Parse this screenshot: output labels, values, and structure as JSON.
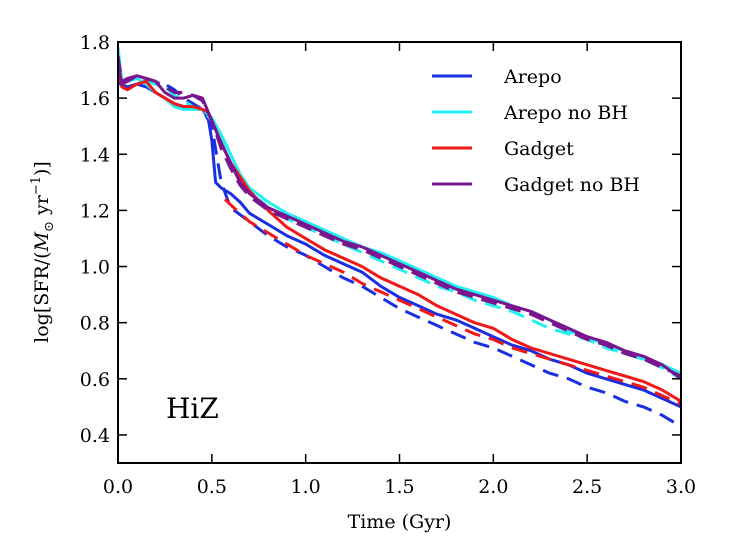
{
  "chart_data": {
    "type": "line",
    "title": "",
    "xlabel": "Time (Gyr)",
    "ylabel": "log[SFR/(M⊙ yr⁻¹)]",
    "ylabel_parts": {
      "prefix": "log[SFR/(",
      "msym": "M",
      "msub": "⊙",
      "unit": " yr",
      "exp": "−1",
      "suffix": ")]"
    },
    "xlim": [
      0.0,
      3.0
    ],
    "ylim": [
      0.3,
      1.8
    ],
    "xticks": [
      0.0,
      0.5,
      1.0,
      1.5,
      2.0,
      2.5,
      3.0
    ],
    "xtick_labels": [
      "0.0",
      "0.5",
      "1.0",
      "1.5",
      "2.0",
      "2.5",
      "3.0"
    ],
    "yticks": [
      0.4,
      0.6,
      0.8,
      1.0,
      1.2,
      1.4,
      1.6,
      1.8
    ],
    "ytick_labels": [
      "0.4",
      "0.6",
      "0.8",
      "1.0",
      "1.2",
      "1.4",
      "1.6",
      "1.8"
    ],
    "panel_label": "HiZ",
    "legend_position": "top-right",
    "legend": [
      {
        "name": "Arepo",
        "color": "#1a2fe0"
      },
      {
        "name": "Arepo no BH",
        "color": "#22f0f0"
      },
      {
        "name": "Gadget",
        "color": "#f01818"
      },
      {
        "name": "Gadget no BH",
        "color": "#7a1590"
      }
    ],
    "series": [
      {
        "name": "Arepo",
        "style": "solid",
        "color": "#1a2fe0",
        "x": [
          0.0,
          0.01,
          0.05,
          0.1,
          0.15,
          0.2,
          0.25,
          0.3,
          0.35,
          0.4,
          0.45,
          0.48,
          0.5,
          0.52,
          0.55,
          0.6,
          0.65,
          0.7,
          0.8,
          0.9,
          1.0,
          1.1,
          1.2,
          1.3,
          1.4,
          1.5,
          1.6,
          1.7,
          1.8,
          1.9,
          2.0,
          2.1,
          2.2,
          2.3,
          2.4,
          2.5,
          2.6,
          2.7,
          2.8,
          2.9,
          3.0
        ],
        "y": [
          1.78,
          1.65,
          1.64,
          1.65,
          1.64,
          1.62,
          1.6,
          1.58,
          1.57,
          1.57,
          1.56,
          1.53,
          1.45,
          1.3,
          1.28,
          1.26,
          1.23,
          1.19,
          1.15,
          1.11,
          1.08,
          1.04,
          1.01,
          0.98,
          0.93,
          0.89,
          0.86,
          0.83,
          0.81,
          0.78,
          0.75,
          0.72,
          0.7,
          0.67,
          0.65,
          0.62,
          0.6,
          0.58,
          0.56,
          0.53,
          0.5
        ]
      },
      {
        "name": "Arepo (dashed)",
        "style": "dashed",
        "color": "#1a2fe0",
        "x": [
          0.0,
          0.02,
          0.05,
          0.1,
          0.15,
          0.2,
          0.25,
          0.3,
          0.35,
          0.4,
          0.45,
          0.5,
          0.55,
          0.6,
          0.7,
          0.8,
          0.9,
          1.0,
          1.1,
          1.2,
          1.3,
          1.4,
          1.5,
          1.6,
          1.7,
          1.8,
          1.9,
          2.0,
          2.1,
          2.2,
          2.3,
          2.4,
          2.5,
          2.6,
          2.7,
          2.8,
          2.9,
          3.0
        ],
        "y": [
          1.76,
          1.66,
          1.66,
          1.67,
          1.66,
          1.65,
          1.65,
          1.63,
          1.6,
          1.58,
          1.56,
          1.5,
          1.3,
          1.21,
          1.16,
          1.11,
          1.07,
          1.04,
          1.0,
          0.96,
          0.93,
          0.89,
          0.85,
          0.82,
          0.79,
          0.76,
          0.73,
          0.71,
          0.68,
          0.65,
          0.62,
          0.6,
          0.57,
          0.55,
          0.52,
          0.5,
          0.47,
          0.43
        ]
      },
      {
        "name": "Arepo no BH",
        "style": "solid",
        "color": "#22f0f0",
        "x": [
          0.0,
          0.02,
          0.05,
          0.1,
          0.15,
          0.2,
          0.25,
          0.3,
          0.35,
          0.4,
          0.45,
          0.5,
          0.55,
          0.6,
          0.65,
          0.7,
          0.8,
          0.9,
          1.0,
          1.1,
          1.2,
          1.3,
          1.4,
          1.5,
          1.6,
          1.7,
          1.8,
          1.9,
          2.0,
          2.1,
          2.2,
          2.3,
          2.4,
          2.5,
          2.6,
          2.7,
          2.8,
          2.9,
          3.0
        ],
        "y": [
          1.78,
          1.66,
          1.66,
          1.67,
          1.65,
          1.62,
          1.6,
          1.57,
          1.56,
          1.56,
          1.56,
          1.53,
          1.47,
          1.4,
          1.33,
          1.28,
          1.23,
          1.19,
          1.16,
          1.13,
          1.1,
          1.07,
          1.05,
          1.02,
          0.99,
          0.96,
          0.93,
          0.91,
          0.89,
          0.86,
          0.84,
          0.81,
          0.77,
          0.75,
          0.72,
          0.7,
          0.67,
          0.65,
          0.62
        ]
      },
      {
        "name": "Arepo no BH (dashed)",
        "style": "dashed",
        "color": "#22f0f0",
        "x": [
          0.0,
          0.02,
          0.05,
          0.1,
          0.15,
          0.2,
          0.25,
          0.3,
          0.35,
          0.4,
          0.45,
          0.5,
          0.55,
          0.6,
          0.7,
          0.8,
          0.9,
          1.0,
          1.1,
          1.2,
          1.3,
          1.4,
          1.5,
          1.6,
          1.7,
          1.8,
          1.9,
          2.0,
          2.1,
          2.2,
          2.3,
          2.4,
          2.5,
          2.6,
          2.7,
          2.8,
          2.9,
          3.0
        ],
        "y": [
          1.76,
          1.66,
          1.66,
          1.67,
          1.66,
          1.65,
          1.64,
          1.61,
          1.59,
          1.57,
          1.56,
          1.52,
          1.45,
          1.36,
          1.27,
          1.21,
          1.17,
          1.14,
          1.11,
          1.08,
          1.05,
          1.02,
          0.99,
          0.96,
          0.93,
          0.91,
          0.88,
          0.86,
          0.84,
          0.81,
          0.78,
          0.76,
          0.74,
          0.71,
          0.69,
          0.67,
          0.64,
          0.6
        ]
      },
      {
        "name": "Gadget",
        "style": "solid",
        "color": "#f01818",
        "x": [
          0.0,
          0.02,
          0.05,
          0.1,
          0.15,
          0.2,
          0.25,
          0.3,
          0.35,
          0.4,
          0.45,
          0.48,
          0.5,
          0.55,
          0.6,
          0.65,
          0.7,
          0.8,
          0.9,
          1.0,
          1.1,
          1.2,
          1.3,
          1.4,
          1.5,
          1.6,
          1.7,
          1.8,
          1.9,
          2.0,
          2.1,
          2.2,
          2.3,
          2.4,
          2.5,
          2.6,
          2.7,
          2.8,
          2.9,
          3.0
        ],
        "y": [
          1.72,
          1.64,
          1.63,
          1.65,
          1.66,
          1.62,
          1.6,
          1.58,
          1.57,
          1.57,
          1.56,
          1.55,
          1.52,
          1.44,
          1.37,
          1.32,
          1.27,
          1.2,
          1.14,
          1.1,
          1.06,
          1.03,
          1.0,
          0.96,
          0.93,
          0.9,
          0.86,
          0.83,
          0.8,
          0.78,
          0.74,
          0.71,
          0.69,
          0.67,
          0.65,
          0.63,
          0.61,
          0.59,
          0.56,
          0.52
        ]
      },
      {
        "name": "Gadget (dashed)",
        "style": "dashed",
        "color": "#f01818",
        "x": [
          0.57,
          0.6,
          0.65,
          0.7,
          0.8,
          0.9,
          1.0,
          1.1,
          1.2,
          1.3,
          1.4,
          1.5,
          1.6,
          1.7,
          1.8,
          1.9,
          2.0,
          2.1,
          2.2,
          2.3,
          2.4,
          2.5,
          2.6,
          2.7,
          2.8,
          2.9,
          3.0
        ],
        "y": [
          1.24,
          1.22,
          1.19,
          1.16,
          1.12,
          1.08,
          1.04,
          1.01,
          0.98,
          0.94,
          0.91,
          0.88,
          0.85,
          0.82,
          0.79,
          0.76,
          0.74,
          0.71,
          0.69,
          0.67,
          0.65,
          0.63,
          0.61,
          0.59,
          0.57,
          0.54,
          0.51
        ]
      },
      {
        "name": "Gadget no BH",
        "style": "solid",
        "color": "#7a1590",
        "x": [
          0.0,
          0.02,
          0.05,
          0.1,
          0.15,
          0.2,
          0.25,
          0.3,
          0.35,
          0.4,
          0.45,
          0.5,
          0.55,
          0.6,
          0.65,
          0.7,
          0.8,
          0.9,
          1.0,
          1.1,
          1.2,
          1.3,
          1.4,
          1.5,
          1.6,
          1.7,
          1.8,
          1.9,
          2.0,
          2.1,
          2.2,
          2.3,
          2.4,
          2.5,
          2.6,
          2.7,
          2.8,
          2.9,
          3.0
        ],
        "y": [
          1.73,
          1.65,
          1.66,
          1.68,
          1.67,
          1.66,
          1.62,
          1.6,
          1.6,
          1.61,
          1.6,
          1.52,
          1.44,
          1.37,
          1.3,
          1.26,
          1.21,
          1.18,
          1.15,
          1.12,
          1.09,
          1.07,
          1.04,
          1.01,
          0.98,
          0.95,
          0.92,
          0.9,
          0.88,
          0.86,
          0.84,
          0.81,
          0.78,
          0.75,
          0.73,
          0.7,
          0.68,
          0.65,
          0.6
        ]
      },
      {
        "name": "Gadget no BH (dashed)",
        "style": "dashed",
        "color": "#7a1590",
        "x": [
          0.0,
          0.02,
          0.05,
          0.1,
          0.15,
          0.2,
          0.25,
          0.3,
          0.35,
          0.4,
          0.45,
          0.5,
          0.55,
          0.6,
          0.65,
          0.7,
          0.8,
          0.9,
          1.0,
          1.1,
          1.2,
          1.3,
          1.4,
          1.5,
          1.6,
          1.7,
          1.8,
          1.9,
          2.0,
          2.1,
          2.2,
          2.3,
          2.4,
          2.5,
          2.6,
          2.7,
          2.8,
          2.9,
          3.0
        ],
        "y": [
          1.75,
          1.66,
          1.67,
          1.68,
          1.67,
          1.66,
          1.64,
          1.62,
          1.62,
          1.61,
          1.59,
          1.52,
          1.42,
          1.35,
          1.29,
          1.25,
          1.2,
          1.17,
          1.14,
          1.11,
          1.08,
          1.06,
          1.03,
          1.0,
          0.97,
          0.94,
          0.91,
          0.89,
          0.87,
          0.85,
          0.83,
          0.8,
          0.77,
          0.74,
          0.72,
          0.69,
          0.67,
          0.64,
          0.61
        ]
      }
    ]
  }
}
